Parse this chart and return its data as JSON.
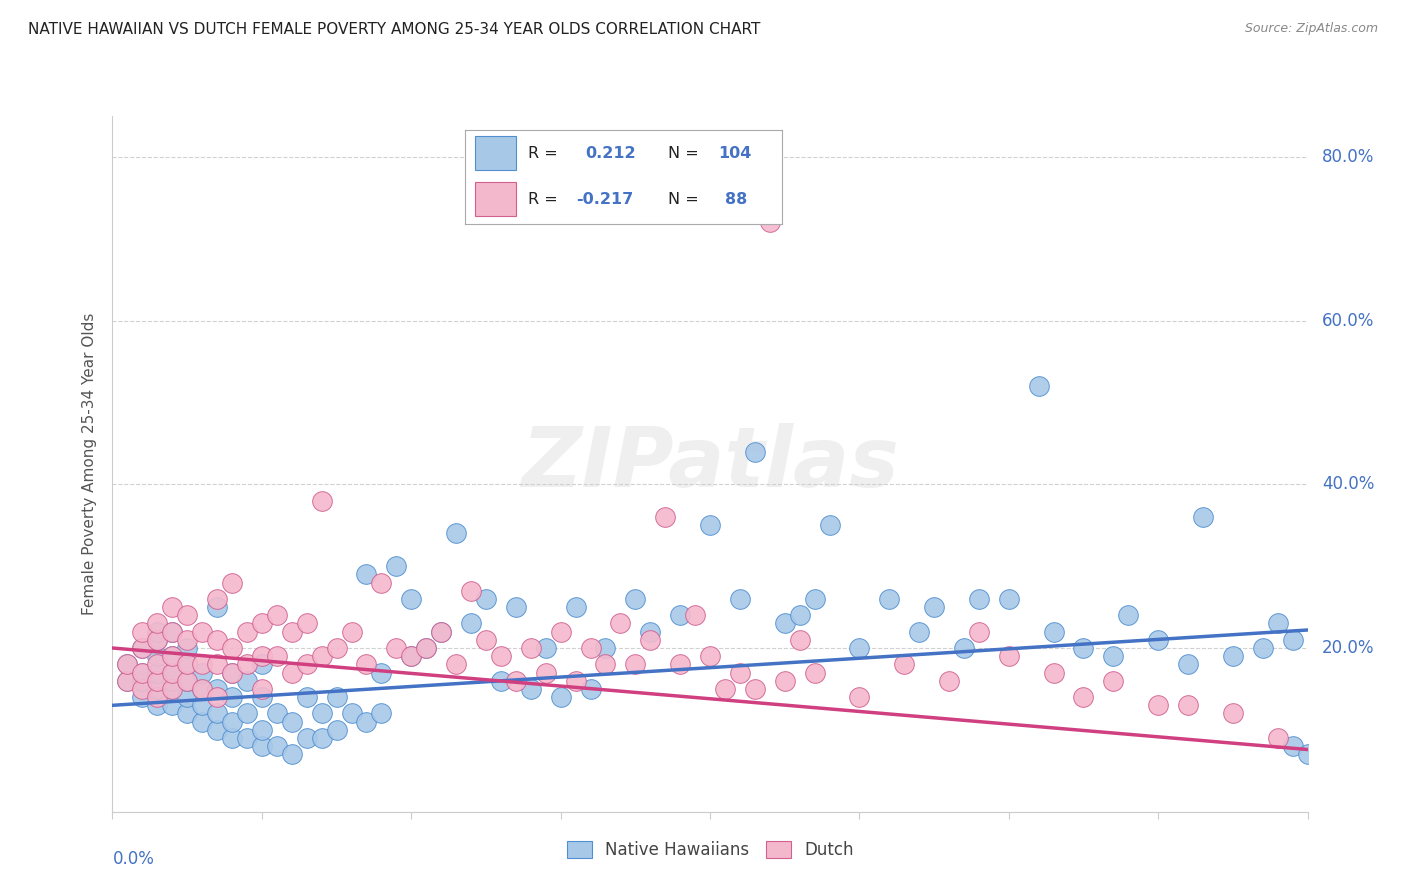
{
  "title": "NATIVE HAWAIIAN VS DUTCH FEMALE POVERTY AMONG 25-34 YEAR OLDS CORRELATION CHART",
  "source": "Source: ZipAtlas.com",
  "ylabel": "Female Poverty Among 25-34 Year Olds",
  "watermark": "ZIPatlas",
  "blue_color": "#a8c8e8",
  "pink_color": "#f4b8cc",
  "blue_line_color": "#4472c4",
  "pink_line_color": "#d04080",
  "blue_edge_color": "#5090d0",
  "pink_edge_color": "#d06090",
  "axis_label_color": "#4472c4",
  "grid_color": "#cccccc",
  "title_color": "#222222",
  "source_color": "#888888",
  "blue_intercept": 0.13,
  "blue_slope": 0.115,
  "pink_intercept": 0.2,
  "pink_slope": -0.155,
  "blue_scatter_x": [
    0.01,
    0.01,
    0.02,
    0.02,
    0.02,
    0.02,
    0.03,
    0.03,
    0.03,
    0.03,
    0.03,
    0.03,
    0.04,
    0.04,
    0.04,
    0.04,
    0.04,
    0.04,
    0.05,
    0.05,
    0.05,
    0.05,
    0.05,
    0.06,
    0.06,
    0.06,
    0.06,
    0.07,
    0.07,
    0.07,
    0.07,
    0.08,
    0.08,
    0.08,
    0.08,
    0.09,
    0.09,
    0.09,
    0.1,
    0.1,
    0.1,
    0.1,
    0.11,
    0.11,
    0.12,
    0.12,
    0.13,
    0.13,
    0.14,
    0.14,
    0.15,
    0.15,
    0.16,
    0.17,
    0.17,
    0.18,
    0.18,
    0.19,
    0.2,
    0.2,
    0.21,
    0.22,
    0.23,
    0.24,
    0.25,
    0.26,
    0.27,
    0.28,
    0.29,
    0.3,
    0.31,
    0.32,
    0.33,
    0.35,
    0.36,
    0.38,
    0.4,
    0.42,
    0.43,
    0.45,
    0.46,
    0.47,
    0.48,
    0.5,
    0.52,
    0.54,
    0.55,
    0.57,
    0.58,
    0.6,
    0.62,
    0.63,
    0.65,
    0.67,
    0.68,
    0.7,
    0.72,
    0.73,
    0.75,
    0.77,
    0.78,
    0.79,
    0.79,
    0.8
  ],
  "blue_scatter_y": [
    0.16,
    0.18,
    0.14,
    0.16,
    0.17,
    0.2,
    0.13,
    0.15,
    0.17,
    0.19,
    0.21,
    0.22,
    0.13,
    0.15,
    0.16,
    0.17,
    0.19,
    0.22,
    0.12,
    0.14,
    0.16,
    0.18,
    0.2,
    0.11,
    0.13,
    0.15,
    0.17,
    0.1,
    0.12,
    0.15,
    0.25,
    0.09,
    0.11,
    0.14,
    0.17,
    0.09,
    0.12,
    0.16,
    0.08,
    0.1,
    0.14,
    0.18,
    0.08,
    0.12,
    0.07,
    0.11,
    0.09,
    0.14,
    0.09,
    0.12,
    0.1,
    0.14,
    0.12,
    0.11,
    0.29,
    0.12,
    0.17,
    0.3,
    0.19,
    0.26,
    0.2,
    0.22,
    0.34,
    0.23,
    0.26,
    0.16,
    0.25,
    0.15,
    0.2,
    0.14,
    0.25,
    0.15,
    0.2,
    0.26,
    0.22,
    0.24,
    0.35,
    0.26,
    0.44,
    0.23,
    0.24,
    0.26,
    0.35,
    0.2,
    0.26,
    0.22,
    0.25,
    0.2,
    0.26,
    0.26,
    0.52,
    0.22,
    0.2,
    0.19,
    0.24,
    0.21,
    0.18,
    0.36,
    0.19,
    0.2,
    0.23,
    0.08,
    0.21,
    0.07
  ],
  "pink_scatter_x": [
    0.01,
    0.01,
    0.02,
    0.02,
    0.02,
    0.02,
    0.03,
    0.03,
    0.03,
    0.03,
    0.03,
    0.04,
    0.04,
    0.04,
    0.04,
    0.04,
    0.05,
    0.05,
    0.05,
    0.05,
    0.06,
    0.06,
    0.06,
    0.07,
    0.07,
    0.07,
    0.07,
    0.08,
    0.08,
    0.08,
    0.09,
    0.09,
    0.1,
    0.1,
    0.1,
    0.11,
    0.11,
    0.12,
    0.12,
    0.13,
    0.13,
    0.14,
    0.14,
    0.15,
    0.16,
    0.17,
    0.18,
    0.19,
    0.2,
    0.21,
    0.22,
    0.23,
    0.24,
    0.25,
    0.26,
    0.27,
    0.28,
    0.29,
    0.3,
    0.31,
    0.32,
    0.33,
    0.34,
    0.35,
    0.36,
    0.37,
    0.38,
    0.39,
    0.4,
    0.41,
    0.42,
    0.43,
    0.44,
    0.45,
    0.46,
    0.47,
    0.5,
    0.53,
    0.56,
    0.58,
    0.6,
    0.63,
    0.65,
    0.67,
    0.7,
    0.72,
    0.75,
    0.78
  ],
  "pink_scatter_y": [
    0.16,
    0.18,
    0.15,
    0.17,
    0.2,
    0.22,
    0.14,
    0.16,
    0.18,
    0.21,
    0.23,
    0.15,
    0.17,
    0.19,
    0.22,
    0.25,
    0.16,
    0.18,
    0.21,
    0.24,
    0.15,
    0.18,
    0.22,
    0.14,
    0.18,
    0.21,
    0.26,
    0.17,
    0.2,
    0.28,
    0.18,
    0.22,
    0.15,
    0.19,
    0.23,
    0.19,
    0.24,
    0.17,
    0.22,
    0.18,
    0.23,
    0.19,
    0.38,
    0.2,
    0.22,
    0.18,
    0.28,
    0.2,
    0.19,
    0.2,
    0.22,
    0.18,
    0.27,
    0.21,
    0.19,
    0.16,
    0.2,
    0.17,
    0.22,
    0.16,
    0.2,
    0.18,
    0.23,
    0.18,
    0.21,
    0.36,
    0.18,
    0.24,
    0.19,
    0.15,
    0.17,
    0.15,
    0.72,
    0.16,
    0.21,
    0.17,
    0.14,
    0.18,
    0.16,
    0.22,
    0.19,
    0.17,
    0.14,
    0.16,
    0.13,
    0.13,
    0.12,
    0.09
  ]
}
